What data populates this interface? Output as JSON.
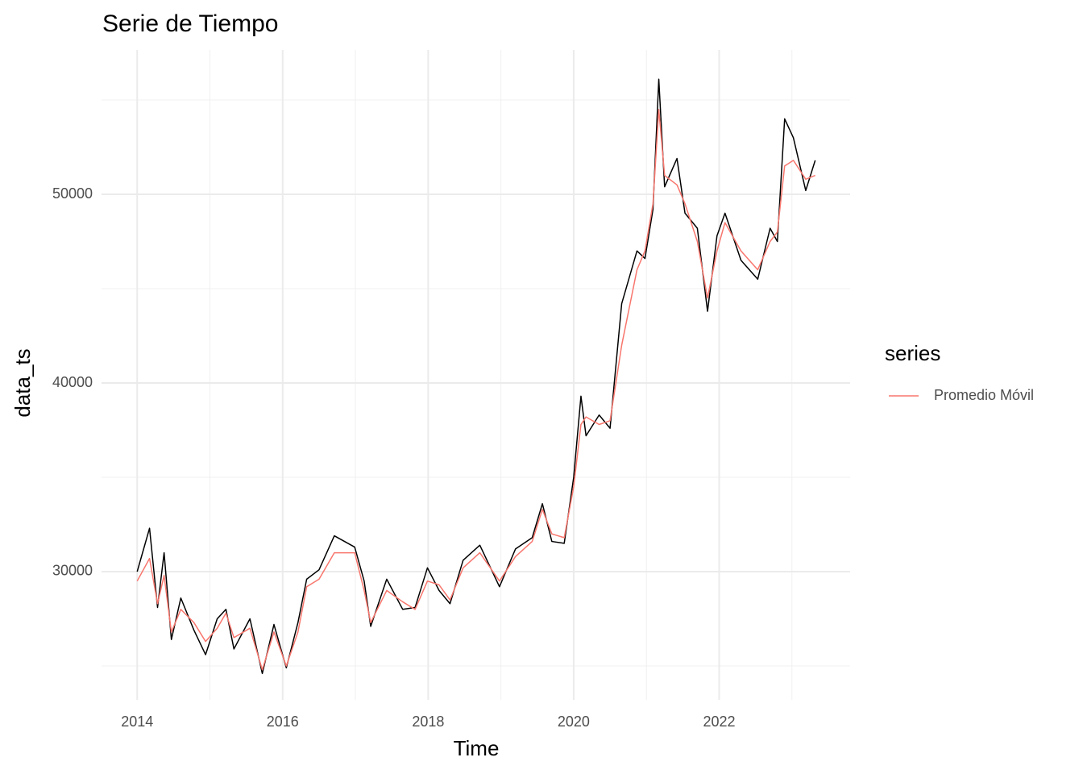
{
  "chart_data": {
    "type": "line",
    "title": "Serie de Tiempo",
    "x_label": "Time",
    "y_label": "data_ts",
    "legend_title": "series",
    "legend_position": "right",
    "grid": true,
    "xlim": [
      2013.51,
      2023.8
    ],
    "xticks": [
      2014,
      2016,
      2018,
      2020,
      2022
    ],
    "minor_xticks": [
      2015,
      2017,
      2019,
      2021,
      2023
    ],
    "ylim": [
      23205,
      57650
    ],
    "yticks": [
      30000,
      40000,
      50000
    ],
    "minor_yticks": [
      25000,
      35000,
      45000,
      55000
    ],
    "x": [
      2014.0,
      2014.17,
      2014.28,
      2014.37,
      2014.47,
      2014.6,
      2014.78,
      2014.94,
      2015.1,
      2015.22,
      2015.33,
      2015.55,
      2015.72,
      2015.88,
      2016.05,
      2016.21,
      2016.33,
      2016.5,
      2016.71,
      2016.99,
      2017.12,
      2017.21,
      2017.43,
      2017.65,
      2017.82,
      2017.99,
      2018.15,
      2018.3,
      2018.48,
      2018.71,
      2018.98,
      2019.2,
      2019.43,
      2019.57,
      2019.7,
      2019.87,
      2020.0,
      2020.1,
      2020.17,
      2020.35,
      2020.5,
      2020.66,
      2020.87,
      2020.98,
      2021.09,
      2021.17,
      2021.25,
      2021.42,
      2021.53,
      2021.7,
      2021.84,
      2021.97,
      2022.08,
      2022.3,
      2022.53,
      2022.7,
      2022.8,
      2022.9,
      2023.02,
      2023.19,
      2023.32
    ],
    "series": [
      {
        "color": "#000000",
        "legend": false,
        "values": [
          30000,
          32300,
          28100,
          31000,
          26400,
          28600,
          26900,
          25600,
          27500,
          28000,
          25900,
          27500,
          24600,
          27200,
          24900,
          27300,
          29600,
          30100,
          31900,
          31300,
          29500,
          27100,
          29600,
          28000,
          28100,
          30200,
          29000,
          28300,
          30600,
          31400,
          29200,
          31200,
          31800,
          33600,
          31600,
          31500,
          35000,
          39300,
          37200,
          38300,
          37600,
          44200,
          47000,
          46600,
          49200,
          56100,
          50400,
          51900,
          49000,
          48200,
          43800,
          47800,
          49000,
          46500,
          45500,
          48200,
          47500,
          54000,
          53000,
          50200,
          51800
        ]
      },
      {
        "name": "Promedio Móvil",
        "color": "#f8766d",
        "values": [
          29500,
          30700,
          28300,
          29800,
          26800,
          28000,
          27300,
          26300,
          27000,
          27800,
          26500,
          27000,
          24800,
          26800,
          25000,
          26800,
          29200,
          29600,
          31000,
          31000,
          29000,
          27300,
          29000,
          28400,
          28000,
          29500,
          29300,
          28500,
          30200,
          31000,
          29500,
          30800,
          31600,
          33300,
          32000,
          31800,
          34500,
          37800,
          38200,
          37800,
          38000,
          42000,
          46000,
          47000,
          49500,
          54500,
          51000,
          50500,
          49500,
          47500,
          44500,
          47000,
          48500,
          47000,
          46000,
          47500,
          48000,
          51500,
          51800,
          50800,
          51000
        ]
      }
    ]
  }
}
